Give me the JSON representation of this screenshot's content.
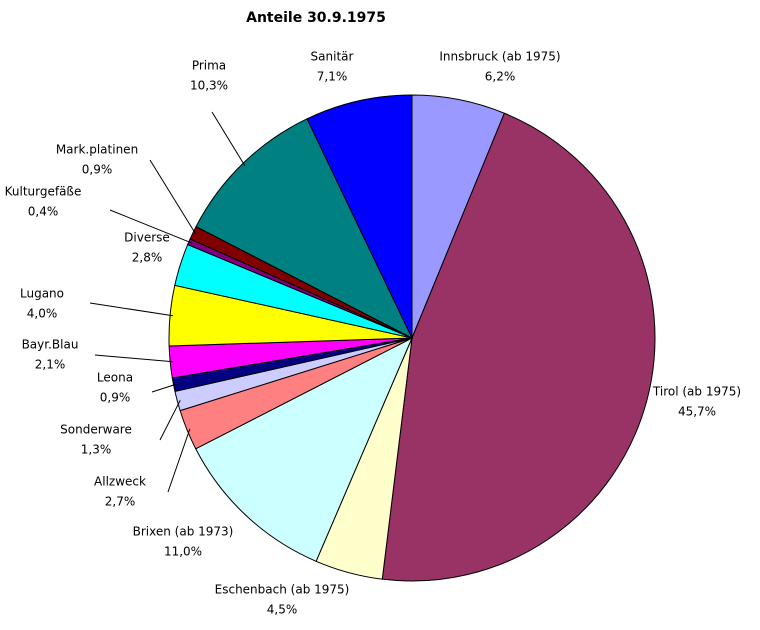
{
  "chart_data": {
    "type": "pie",
    "title": "Anteile 30.9.1975",
    "categories": [
      "Innsbruck (ab 1975)",
      "Tirol (ab 1975)",
      "Eschenbach (ab 1975)",
      "Brixen (ab 1973)",
      "Allzweck",
      "Sonderware",
      "Leona",
      "Bayr.Blau",
      "Lugano",
      "Diverse",
      "Kulturgefäße",
      "Mark.platinen",
      "Prima",
      "Sanitär"
    ],
    "values": [
      6.2,
      45.7,
      4.5,
      11.0,
      2.7,
      1.3,
      0.9,
      2.1,
      4.0,
      2.8,
      0.4,
      0.9,
      10.3,
      7.1
    ],
    "value_labels": [
      "6,2%",
      "45,7%",
      "4,5%",
      "11,0%",
      "2,7%",
      "1,3%",
      "0,9%",
      "2,1%",
      "4,0%",
      "2,8%",
      "0,4%",
      "0,9%",
      "10,3%",
      "7,1%"
    ],
    "colors": [
      "#9999ff",
      "#993366",
      "#ffffcc",
      "#ccffff",
      "#ff8080",
      "#ccccff",
      "#000080",
      "#ff00ff",
      "#ffff00",
      "#00ffff",
      "#800080",
      "#800000",
      "#008080",
      "#0000ff"
    ]
  }
}
